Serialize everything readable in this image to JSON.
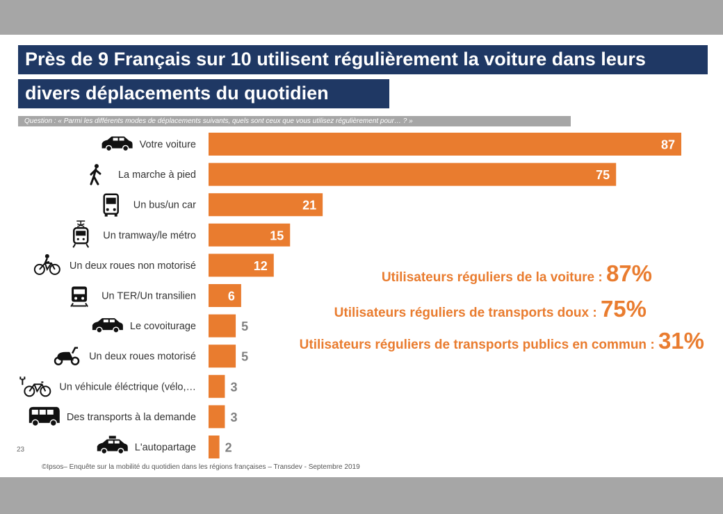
{
  "title_line1": "Près de 9 Français sur 10 utilisent régulièrement la voiture dans leurs",
  "title_line2": "divers déplacements du quotidien",
  "question": "Question : « Parmi les différents modes de déplacements suivants, quels sont ceux que vous utilisez régulièrement pour… ? »",
  "colors": {
    "bar": "#e97c2f",
    "title_bg": "#1f3864",
    "question_bg": "#a6a6a6",
    "outside_value": "#7f7f7f"
  },
  "chart_data": {
    "type": "bar",
    "orientation": "horizontal",
    "categories": [
      "Votre voiture",
      "La marche à pied",
      "Un bus/un car",
      "Un tramway/le métro",
      "Un deux roues non motorisé",
      "Un TER/Un transilien",
      "Le covoiturage",
      "Un deux roues motorisé",
      "Un véhicule éléctrique (vélo,…",
      "Des transports à la demande",
      "L'autopartage"
    ],
    "values": [
      87,
      75,
      21,
      15,
      12,
      6,
      5,
      5,
      3,
      3,
      2
    ],
    "icons": [
      "car-icon",
      "walking-person-icon",
      "bus-icon",
      "tram-icon",
      "bicycle-icon",
      "train-icon",
      "car-icon",
      "scooter-icon",
      "electric-bike-icon",
      "van-icon",
      "taxi-icon"
    ],
    "xlim": [
      0,
      87
    ]
  },
  "callouts": [
    {
      "text": "Utilisateurs réguliers de la voiture : ",
      "value": "87%"
    },
    {
      "text": "Utilisateurs réguliers de transports doux : ",
      "value": "75%"
    },
    {
      "text": "Utilisateurs réguliers de transports publics en commun : ",
      "value": "31%"
    }
  ],
  "page_number": "23",
  "footer": "©Ipsos– Enquête sur la mobilité du quotidien dans les régions françaises – Transdev - Septembre 2019"
}
